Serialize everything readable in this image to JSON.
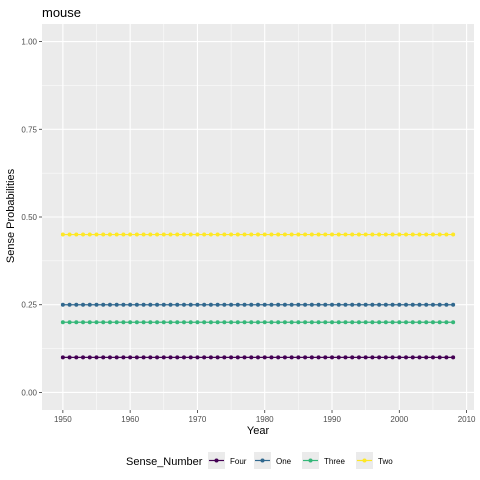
{
  "chart_data": {
    "type": "line",
    "title": "mouse",
    "xlabel": "Year",
    "ylabel": "Sense Probabilities",
    "xlim": [
      1946.9,
      2011.1
    ],
    "ylim": [
      -0.05,
      1.05
    ],
    "x_ticks": [
      1950,
      1960,
      1970,
      1980,
      1990,
      2000,
      2010
    ],
    "y_ticks": [
      0.0,
      0.25,
      0.5,
      0.75,
      1.0
    ],
    "x_tick_labels": [
      "1950",
      "1960",
      "1970",
      "1980",
      "1990",
      "2000",
      "2010"
    ],
    "y_tick_labels": [
      "0.00",
      "0.25",
      "0.50",
      "0.75",
      "1.00"
    ],
    "x_start": 1950,
    "x_end": 2008,
    "x_step": 1,
    "grid": true,
    "legend_title": "Sense_Number",
    "legend_position": "bottom",
    "series": [
      {
        "name": "Four",
        "value": 0.1,
        "color": "#440154"
      },
      {
        "name": "One",
        "value": 0.25,
        "color": "#31688e"
      },
      {
        "name": "Three",
        "value": 0.2,
        "color": "#35b779"
      },
      {
        "name": "Two",
        "value": 0.45,
        "color": "#fde725"
      }
    ]
  }
}
